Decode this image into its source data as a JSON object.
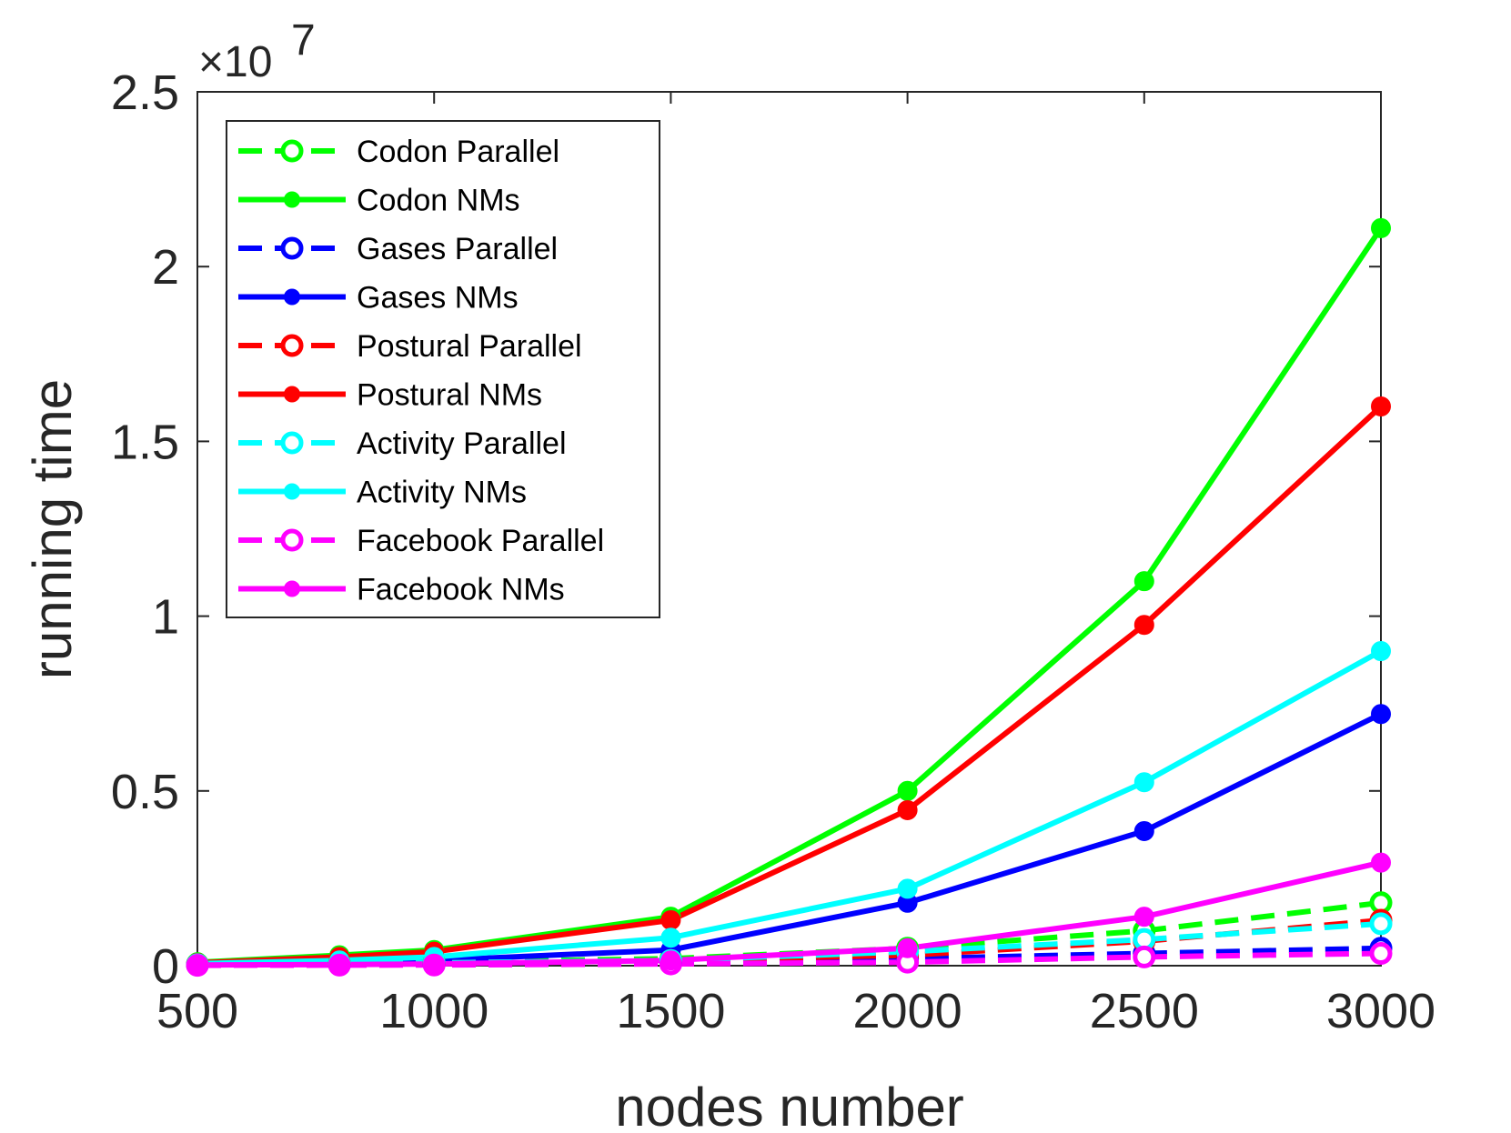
{
  "chart_data": {
    "type": "line",
    "xlabel": "nodes number",
    "ylabel": "running time",
    "y_exponent_base": "×10",
    "y_exponent_power": "7",
    "xlim": [
      500,
      3000
    ],
    "ylim": [
      0,
      25000000
    ],
    "x_ticks": [
      500,
      1000,
      1500,
      2000,
      2500,
      3000
    ],
    "x_tick_labels": [
      "500",
      "1000",
      "1500",
      "2000",
      "2500",
      "3000"
    ],
    "y_ticks": [
      0,
      5000000,
      10000000,
      15000000,
      20000000,
      25000000
    ],
    "y_tick_labels": [
      "0",
      "0.5",
      "1",
      "1.5",
      "2",
      "2.5"
    ],
    "grid": false,
    "legend_position": "top-left",
    "x": [
      500,
      800,
      1000,
      1500,
      2000,
      2500,
      3000
    ],
    "series": [
      {
        "name": "Codon Parallel",
        "color": "#00ff00",
        "style": "dashed",
        "marker": "open-circle",
        "values": [
          50000,
          80000,
          100000,
          200000,
          500000,
          1000000,
          1800000
        ]
      },
      {
        "name": "Codon NMs",
        "color": "#00ff00",
        "style": "solid",
        "marker": "filled-circle",
        "values": [
          100000,
          300000,
          450000,
          1400000,
          5000000,
          11000000,
          21100000
        ]
      },
      {
        "name": "Gases Parallel",
        "color": "#0000ff",
        "style": "dashed",
        "marker": "open-circle",
        "values": [
          20000,
          30000,
          40000,
          80000,
          200000,
          350000,
          500000
        ]
      },
      {
        "name": "Gases NMs",
        "color": "#0000ff",
        "style": "solid",
        "marker": "filled-circle",
        "values": [
          50000,
          100000,
          150000,
          450000,
          1800000,
          3850000,
          7200000
        ]
      },
      {
        "name": "Postural Parallel",
        "color": "#ff0000",
        "style": "dashed",
        "marker": "open-circle",
        "values": [
          30000,
          50000,
          80000,
          150000,
          300000,
          700000,
          1300000
        ]
      },
      {
        "name": "Postural NMs",
        "color": "#ff0000",
        "style": "solid",
        "marker": "filled-circle",
        "values": [
          80000,
          250000,
          400000,
          1300000,
          4450000,
          9750000,
          16000000
        ]
      },
      {
        "name": "Activity Parallel",
        "color": "#00ffff",
        "style": "dashed",
        "marker": "open-circle",
        "values": [
          30000,
          50000,
          80000,
          150000,
          400000,
          750000,
          1200000
        ]
      },
      {
        "name": "Activity NMs",
        "color": "#00ffff",
        "style": "solid",
        "marker": "filled-circle",
        "values": [
          60000,
          150000,
          250000,
          800000,
          2200000,
          5250000,
          9000000
        ]
      },
      {
        "name": "Facebook Parallel",
        "color": "#ff00ff",
        "style": "dashed",
        "marker": "open-circle",
        "values": [
          10000,
          15000,
          20000,
          50000,
          100000,
          250000,
          350000
        ]
      },
      {
        "name": "Facebook NMs",
        "color": "#ff00ff",
        "style": "solid",
        "marker": "filled-circle",
        "values": [
          20000,
          30000,
          50000,
          150000,
          500000,
          1400000,
          2950000
        ]
      }
    ]
  }
}
